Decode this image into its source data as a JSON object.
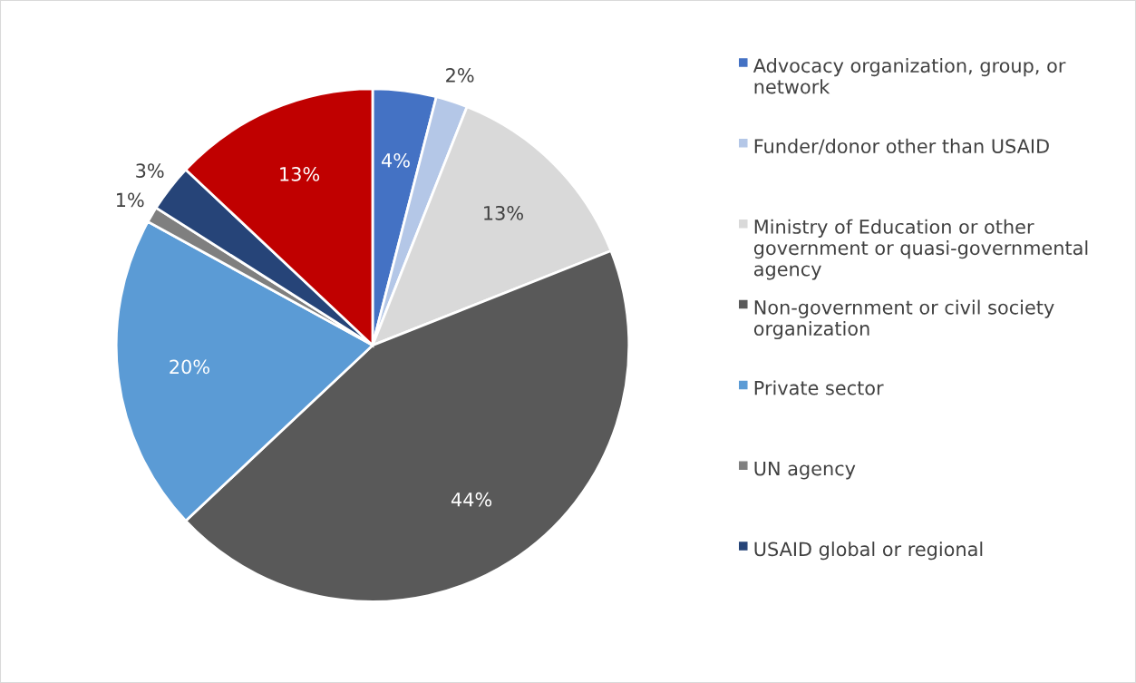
{
  "chart_data": {
    "type": "pie",
    "categories": [
      "Advocacy organization, group, or network",
      "Funder/donor other than USAID",
      "Ministry of Education or other government or quasi-governmental agency",
      "Non-government or civil society organization",
      "Private sector",
      "UN agency",
      "USAID global or regional",
      null
    ],
    "values": [
      4,
      2,
      13,
      44,
      20,
      1,
      3,
      13
    ],
    "value_labels": [
      "4%",
      "2%",
      "13%",
      "44%",
      "20%",
      "1%",
      "3%",
      "13%"
    ],
    "colors": [
      "#4472c4",
      "#b4c7e7",
      "#d9d9d9",
      "#595959",
      "#5b9bd5",
      "#7f7f7f",
      "#264478",
      "#c00000"
    ],
    "legend": "right"
  }
}
